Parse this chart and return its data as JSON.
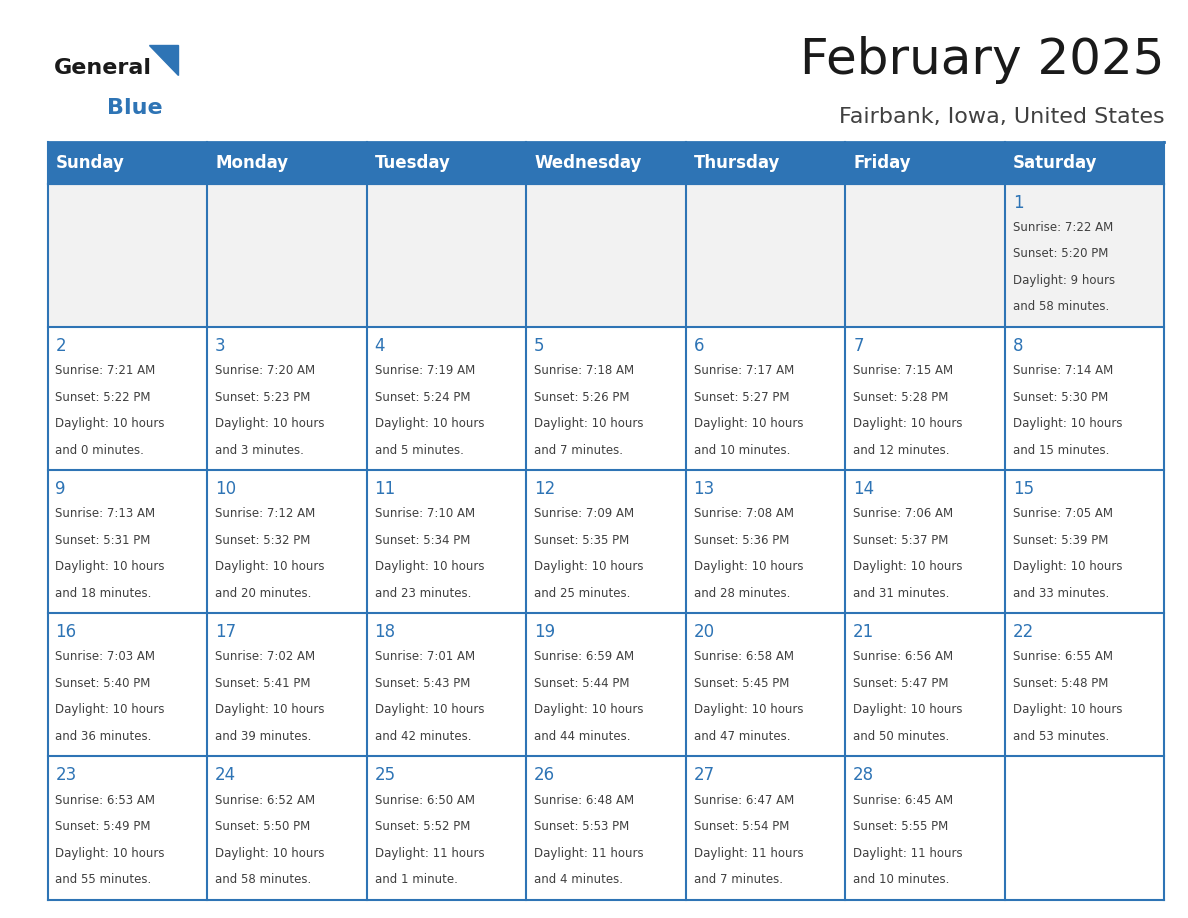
{
  "title": "February 2025",
  "subtitle": "Fairbank, Iowa, United States",
  "header_bg": "#2E74B5",
  "header_text_color": "#FFFFFF",
  "cell_bg_white": "#FFFFFF",
  "cell_bg_gray": "#F2F2F2",
  "border_color": "#2E74B5",
  "day_number_color": "#2E74B5",
  "info_text_color": "#404040",
  "days_of_week": [
    "Sunday",
    "Monday",
    "Tuesday",
    "Wednesday",
    "Thursday",
    "Friday",
    "Saturday"
  ],
  "calendar": [
    [
      {
        "day": 0,
        "info": ""
      },
      {
        "day": 0,
        "info": ""
      },
      {
        "day": 0,
        "info": ""
      },
      {
        "day": 0,
        "info": ""
      },
      {
        "day": 0,
        "info": ""
      },
      {
        "day": 0,
        "info": ""
      },
      {
        "day": 1,
        "info": "Sunrise: 7:22 AM\nSunset: 5:20 PM\nDaylight: 9 hours\nand 58 minutes."
      }
    ],
    [
      {
        "day": 2,
        "info": "Sunrise: 7:21 AM\nSunset: 5:22 PM\nDaylight: 10 hours\nand 0 minutes."
      },
      {
        "day": 3,
        "info": "Sunrise: 7:20 AM\nSunset: 5:23 PM\nDaylight: 10 hours\nand 3 minutes."
      },
      {
        "day": 4,
        "info": "Sunrise: 7:19 AM\nSunset: 5:24 PM\nDaylight: 10 hours\nand 5 minutes."
      },
      {
        "day": 5,
        "info": "Sunrise: 7:18 AM\nSunset: 5:26 PM\nDaylight: 10 hours\nand 7 minutes."
      },
      {
        "day": 6,
        "info": "Sunrise: 7:17 AM\nSunset: 5:27 PM\nDaylight: 10 hours\nand 10 minutes."
      },
      {
        "day": 7,
        "info": "Sunrise: 7:15 AM\nSunset: 5:28 PM\nDaylight: 10 hours\nand 12 minutes."
      },
      {
        "day": 8,
        "info": "Sunrise: 7:14 AM\nSunset: 5:30 PM\nDaylight: 10 hours\nand 15 minutes."
      }
    ],
    [
      {
        "day": 9,
        "info": "Sunrise: 7:13 AM\nSunset: 5:31 PM\nDaylight: 10 hours\nand 18 minutes."
      },
      {
        "day": 10,
        "info": "Sunrise: 7:12 AM\nSunset: 5:32 PM\nDaylight: 10 hours\nand 20 minutes."
      },
      {
        "day": 11,
        "info": "Sunrise: 7:10 AM\nSunset: 5:34 PM\nDaylight: 10 hours\nand 23 minutes."
      },
      {
        "day": 12,
        "info": "Sunrise: 7:09 AM\nSunset: 5:35 PM\nDaylight: 10 hours\nand 25 minutes."
      },
      {
        "day": 13,
        "info": "Sunrise: 7:08 AM\nSunset: 5:36 PM\nDaylight: 10 hours\nand 28 minutes."
      },
      {
        "day": 14,
        "info": "Sunrise: 7:06 AM\nSunset: 5:37 PM\nDaylight: 10 hours\nand 31 minutes."
      },
      {
        "day": 15,
        "info": "Sunrise: 7:05 AM\nSunset: 5:39 PM\nDaylight: 10 hours\nand 33 minutes."
      }
    ],
    [
      {
        "day": 16,
        "info": "Sunrise: 7:03 AM\nSunset: 5:40 PM\nDaylight: 10 hours\nand 36 minutes."
      },
      {
        "day": 17,
        "info": "Sunrise: 7:02 AM\nSunset: 5:41 PM\nDaylight: 10 hours\nand 39 minutes."
      },
      {
        "day": 18,
        "info": "Sunrise: 7:01 AM\nSunset: 5:43 PM\nDaylight: 10 hours\nand 42 minutes."
      },
      {
        "day": 19,
        "info": "Sunrise: 6:59 AM\nSunset: 5:44 PM\nDaylight: 10 hours\nand 44 minutes."
      },
      {
        "day": 20,
        "info": "Sunrise: 6:58 AM\nSunset: 5:45 PM\nDaylight: 10 hours\nand 47 minutes."
      },
      {
        "day": 21,
        "info": "Sunrise: 6:56 AM\nSunset: 5:47 PM\nDaylight: 10 hours\nand 50 minutes."
      },
      {
        "day": 22,
        "info": "Sunrise: 6:55 AM\nSunset: 5:48 PM\nDaylight: 10 hours\nand 53 minutes."
      }
    ],
    [
      {
        "day": 23,
        "info": "Sunrise: 6:53 AM\nSunset: 5:49 PM\nDaylight: 10 hours\nand 55 minutes."
      },
      {
        "day": 24,
        "info": "Sunrise: 6:52 AM\nSunset: 5:50 PM\nDaylight: 10 hours\nand 58 minutes."
      },
      {
        "day": 25,
        "info": "Sunrise: 6:50 AM\nSunset: 5:52 PM\nDaylight: 11 hours\nand 1 minute."
      },
      {
        "day": 26,
        "info": "Sunrise: 6:48 AM\nSunset: 5:53 PM\nDaylight: 11 hours\nand 4 minutes."
      },
      {
        "day": 27,
        "info": "Sunrise: 6:47 AM\nSunset: 5:54 PM\nDaylight: 11 hours\nand 7 minutes."
      },
      {
        "day": 28,
        "info": "Sunrise: 6:45 AM\nSunset: 5:55 PM\nDaylight: 11 hours\nand 10 minutes."
      },
      {
        "day": 0,
        "info": ""
      }
    ]
  ]
}
